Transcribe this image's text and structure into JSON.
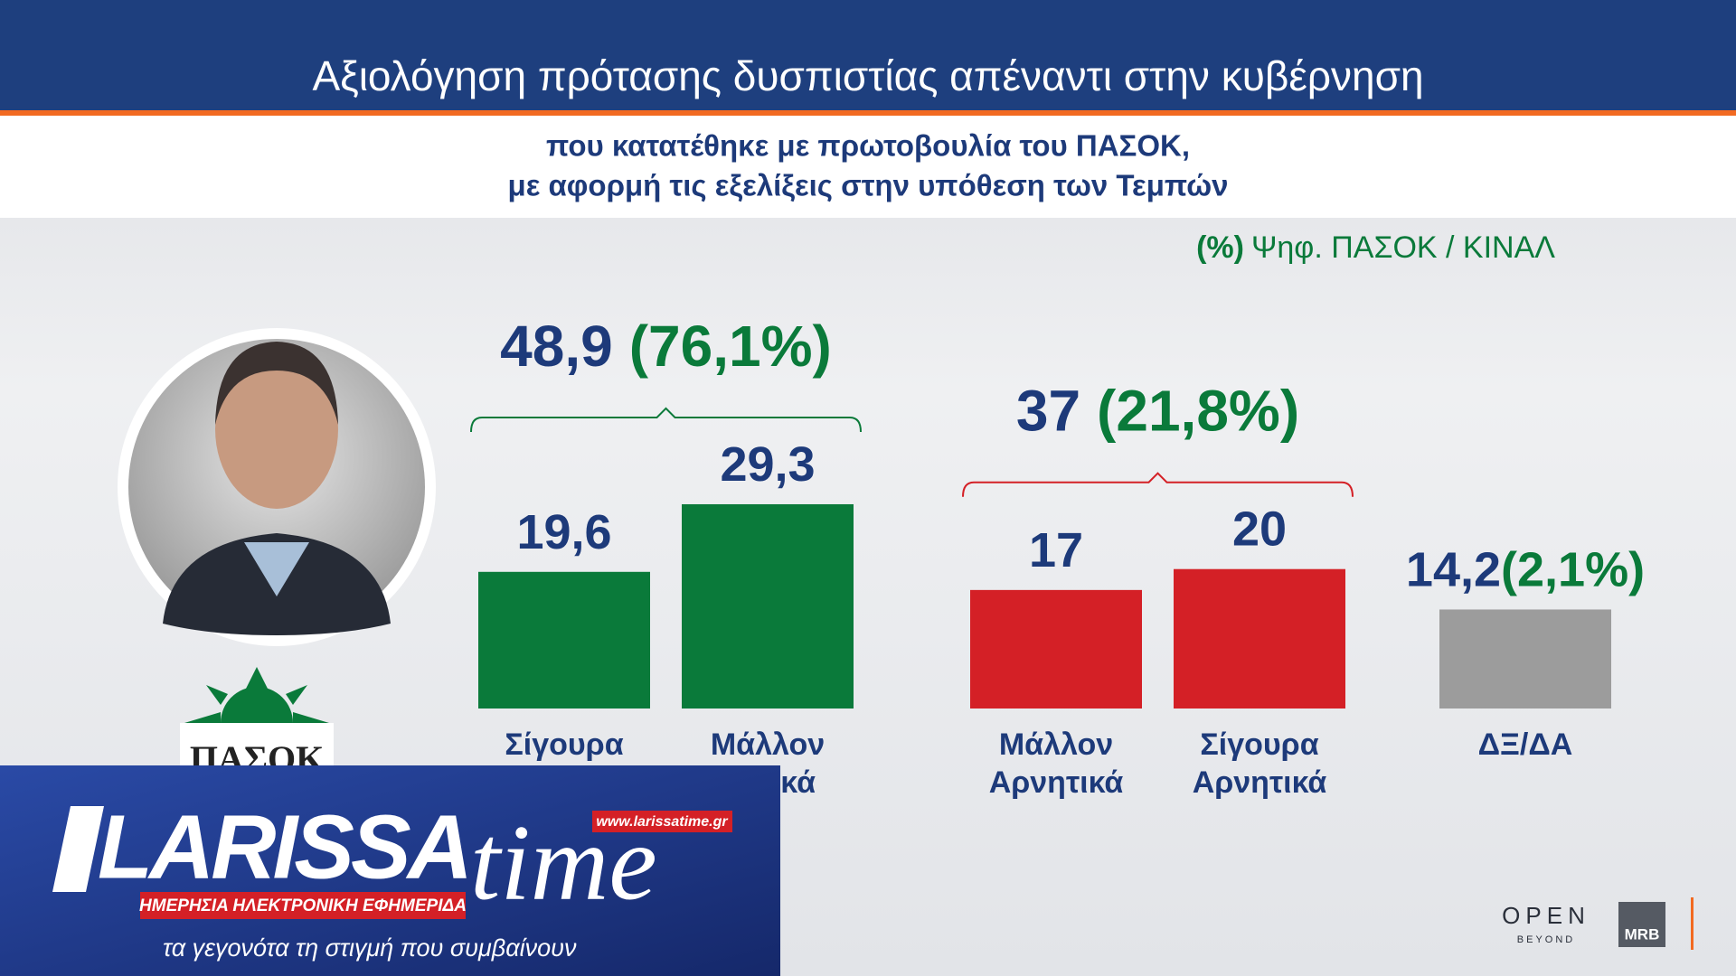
{
  "chart_data": {
    "type": "bar",
    "title": "Αξιολόγηση πρότασης δυσπιστίας απέναντι στην κυβέρνηση",
    "subtitle": [
      "που κατατέθηκε με πρωτοβουλία του ΠΑΣΟΚ,",
      "με αφορμή τις εξελίξεις στην υπόθεση των Τεμπών"
    ],
    "note": {
      "unit": "(%)",
      "text": "Ψηφ. ΠΑΣΟΚ / ΚΙΝΑΛ"
    },
    "categories": [
      "Σίγουρα\nΘετικά",
      "Μάλλον\nΘετικά",
      "Μάλλον\nΑρνητικά",
      "Σίγουρα\nΑρνητικά",
      "ΔΞ/ΔΑ"
    ],
    "values": [
      19.6,
      29.3,
      17,
      20,
      14.2
    ],
    "value_labels": [
      "19,6",
      "29,3",
      "17",
      "20",
      "14,2"
    ],
    "colors": [
      "#0a7a3a",
      "#0a7a3a",
      "#d42026",
      "#d42026",
      "#9c9c9c"
    ],
    "shares": [
      null,
      null,
      null,
      null,
      2.1
    ],
    "share_labels": [
      null,
      null,
      null,
      null,
      "(2,1%)"
    ],
    "groups": [
      {
        "total": 48.9,
        "total_label": "48,9",
        "share": 76.1,
        "share_label": "(76,1%)",
        "color": "#0a7a3a"
      },
      {
        "total": 37,
        "total_label": "37",
        "share": 21.8,
        "share_label": "(21,8%)",
        "color": "#d42026"
      }
    ],
    "ylim": [
      0,
      35
    ]
  },
  "logo": {
    "party": "ΠΑΣΟΚ"
  },
  "overlay": {
    "brand_left": "LARISSA",
    "brand_right": "time",
    "url": "www.larissatime.gr",
    "strip": "ΗΜΕΡΗΣΙΑ ΗΛΕΚΤΡΟΝΙΚΗ ΕΦΗΜΕΡΙΔΑ",
    "tagline": "τα γεγονότα τη στιγμή που συμβαίνουν"
  },
  "branding": {
    "open": "OPEN",
    "beyond": "BEYOND",
    "mrb": "MRB"
  }
}
